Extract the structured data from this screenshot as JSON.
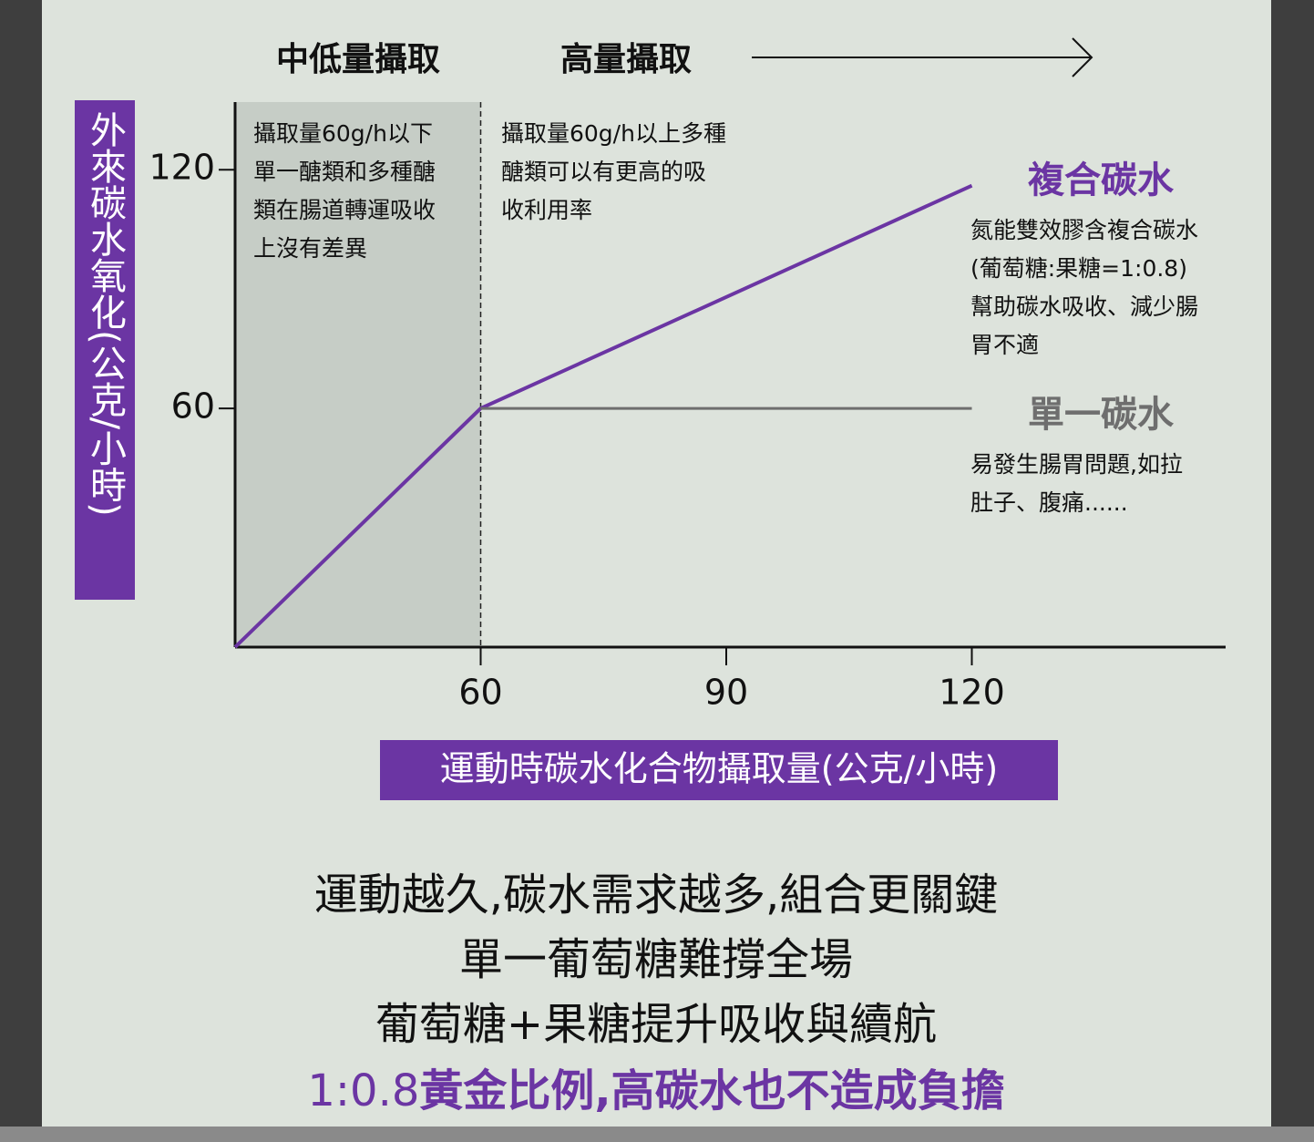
{
  "chart_data": {
    "type": "line",
    "header": {
      "left": "中低量攝取",
      "right": "高量攝取"
    },
    "ylabel": "外來碳水氧化(公克/小時)",
    "xlabel": "運動時碳水化合物攝取量(公克/小時)",
    "xlim": [
      30,
      151
    ],
    "ylim": [
      0,
      137
    ],
    "xticks": [
      60,
      90,
      120
    ],
    "yticks": [
      60,
      120
    ],
    "shaded_region": [
      30,
      60
    ],
    "region_notes": [
      [
        "攝取量60g/h以下",
        "單一醣類和多種醣",
        "類在腸道轉運吸收",
        "上沒有差異"
      ],
      [
        "攝取量60g/h以上多種",
        "醣類可以有更高的吸",
        "收利用率"
      ]
    ],
    "series": [
      {
        "name": "複合碳水",
        "color": "#6b35a3",
        "x": [
          30,
          60,
          120
        ],
        "values": [
          0,
          60,
          116
        ],
        "note": [
          "氮能雙效膠含複合碳水",
          "(葡萄糖:果糖=1:0.8)",
          "幫助碳水吸收、減少腸",
          "胃不適"
        ]
      },
      {
        "name": "單一碳水",
        "color": "#6e6e6e",
        "x": [
          60,
          120
        ],
        "values": [
          60,
          60
        ],
        "note": [
          "易發生腸胃問題,如拉",
          "肚子、腹痛......"
        ]
      }
    ]
  },
  "footer": {
    "lines": [
      "運動越久,碳水需求越多,組合更關鍵",
      "單一葡萄糖難撐全場",
      "葡萄糖+果糖提升吸收與續航"
    ],
    "highlight_prefix": "1:0.8",
    "highlight": "黃金比例,高碳水也不造成負擔"
  }
}
